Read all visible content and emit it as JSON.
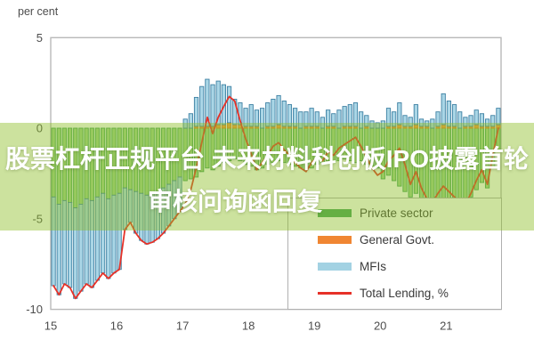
{
  "overlay": {
    "line1": "股票杠杆正规平台 未来材料科创板IPO披露首轮",
    "line2": "审核问询函回复",
    "text_color": "#ffffff",
    "band_color": "rgba(143,190,40,0.45)"
  },
  "chart_data": {
    "type": "stacked-bar+line",
    "ylabel": "per cent",
    "ylim": [
      -10,
      5
    ],
    "y_ticks": [
      "5",
      "0",
      "-5",
      "-10"
    ],
    "y_tick_values": [
      5,
      0,
      -5,
      -10
    ],
    "x_tick_labels": [
      "15",
      "16",
      "17",
      "18",
      "19",
      "20",
      "21"
    ],
    "x_start": "2015-01",
    "x_frequency": "monthly",
    "grid": false,
    "legend_position": "bottom-right",
    "series": [
      {
        "name": "Private sector",
        "slug": "private-sector",
        "type": "bar",
        "fill": "#9ed189",
        "stroke": "#3f9e53",
        "legend_color": "#44a35a",
        "values": [
          -3.8,
          -4.2,
          -4.0,
          -4.1,
          -4.4,
          -4.2,
          -3.9,
          -4.0,
          -3.8,
          -3.6,
          -3.9,
          -3.7,
          -3.6,
          -3.3,
          -3.4,
          -3.5,
          -3.6,
          -3.7,
          -3.6,
          -3.5,
          -3.3,
          -3.1,
          -2.9,
          -2.7,
          -2.9,
          -2.8,
          -2.7,
          -2.4,
          -2.2,
          -2.3,
          -2.1,
          -1.9,
          -1.8,
          -1.7,
          -1.8,
          -2.0,
          -2.1,
          -2.3,
          -2.2,
          -2.0,
          -1.9,
          -1.8,
          -1.9,
          -2.0,
          -2.1,
          -2.2,
          -2.3,
          -2.2,
          -2.0,
          -1.9,
          -1.8,
          -1.9,
          -1.8,
          -1.7,
          -1.8,
          -1.9,
          -1.8,
          -2.0,
          -2.1,
          -2.2,
          -2.8,
          -2.6,
          -2.9,
          -3.2,
          -3.5,
          -3.8,
          -3.6,
          -3.9,
          -4.2,
          -4.4,
          -4.1,
          -3.9,
          -4.0,
          -4.2,
          -4.3,
          -4.1,
          -3.8,
          -3.4,
          -3.0,
          -3.3,
          -2.2,
          -1.2
        ]
      },
      {
        "name": "General Govt.",
        "slug": "general-govt",
        "type": "bar",
        "fill": "#f5993f",
        "stroke": "#e07722",
        "legend_color": "#f08632",
        "values": [
          0,
          0,
          0,
          0,
          0,
          0,
          0,
          0,
          0,
          0,
          0,
          0,
          0,
          0,
          0,
          0,
          0,
          0,
          0,
          0,
          0,
          0,
          0,
          0,
          0,
          0,
          0.1,
          0.1,
          0.1,
          0.1,
          0.2,
          0.2,
          0.3,
          0.2,
          0.2,
          0.1,
          0.1,
          0.1,
          0,
          0.1,
          0.1,
          0.2,
          0.1,
          0.1,
          0.1,
          0,
          0.1,
          0.1,
          0.1,
          0,
          0.1,
          0.1,
          0,
          0.1,
          0.1,
          0.1,
          0,
          0.1,
          0,
          0,
          0,
          0.1,
          0.1,
          0.2,
          0.1,
          0.1,
          0.2,
          0.1,
          0.1,
          0,
          0.1,
          0.2,
          0.1,
          0.1,
          0,
          0.1,
          0.1,
          0.2,
          0.1,
          0.1,
          0.1,
          0.2
        ]
      },
      {
        "name": "MFIs",
        "slug": "mfis",
        "type": "bar",
        "fill": "#aad6e6",
        "stroke": "#3d80a3",
        "legend_color": "#a3d2e3",
        "values": [
          -4.9,
          -5.0,
          -4.6,
          -4.7,
          -5.0,
          -4.8,
          -4.7,
          -4.8,
          -4.6,
          -4.4,
          -4.4,
          -4.3,
          -4.2,
          -2.3,
          -1.8,
          -2.3,
          -2.6,
          -2.7,
          -2.7,
          -2.6,
          -2.5,
          -2.3,
          -2.1,
          -1.9,
          0.5,
          0.8,
          1.6,
          2.2,
          2.6,
          2.3,
          2.4,
          2.2,
          2.0,
          1.4,
          1.2,
          1.0,
          1.2,
          0.9,
          1.1,
          1.3,
          1.5,
          1.6,
          1.4,
          1.2,
          1.0,
          0.9,
          0.8,
          1.0,
          0.8,
          0.6,
          0.9,
          0.7,
          1.0,
          1.1,
          1.2,
          1.3,
          0.9,
          0.6,
          0.4,
          0.3,
          0.4,
          1.0,
          0.8,
          1.2,
          0.6,
          0.5,
          1.1,
          0.4,
          0.3,
          0.5,
          0.8,
          1.7,
          1.4,
          1.2,
          0.9,
          0.5,
          0.6,
          0.8,
          0.7,
          0.4,
          0.6,
          0.9
        ]
      },
      {
        "name": "Total Lending, %",
        "slug": "total-lending",
        "type": "line",
        "color": "#e63128",
        "legend_color": "#e63128",
        "values": [
          -8.7,
          -9.2,
          -8.6,
          -8.8,
          -9.4,
          -9.0,
          -8.6,
          -8.8,
          -8.4,
          -8.0,
          -8.3,
          -8.0,
          -7.8,
          -5.6,
          -5.2,
          -5.8,
          -6.2,
          -6.4,
          -6.3,
          -6.1,
          -5.8,
          -5.4,
          -5.0,
          -4.6,
          -4.2,
          -3.4,
          -2.2,
          -0.8,
          0.6,
          -0.3,
          0.6,
          1.2,
          1.75,
          1.5,
          0.4,
          -0.6,
          -1.4,
          -2.3,
          -1.9,
          -1.5,
          -1.0,
          -0.8,
          -1.2,
          -1.5,
          -1.9,
          -2.2,
          -2.4,
          -1.9,
          -1.6,
          -1.8,
          -1.3,
          -1.5,
          -1.1,
          -0.9,
          -0.7,
          -0.5,
          -1.0,
          -1.6,
          -2.2,
          -2.6,
          -2.4,
          -1.8,
          -1.5,
          -1.1,
          -2.0,
          -3.1,
          -2.4,
          -3.3,
          -3.9,
          -4.1,
          -3.6,
          -3.2,
          -3.5,
          -3.8,
          -4.1,
          -4.2,
          -3.6,
          -2.9,
          -2.3,
          -3.1,
          -1.5,
          0.0
        ]
      }
    ]
  }
}
